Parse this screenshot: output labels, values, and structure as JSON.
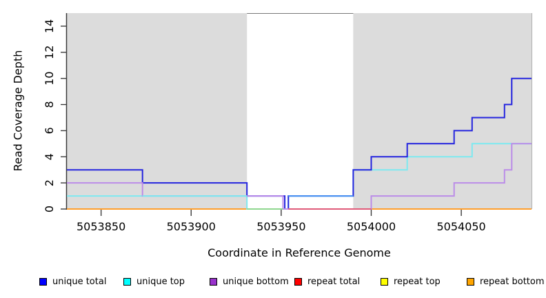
{
  "chart_data": {
    "type": "line",
    "subtype": "step",
    "title": "",
    "xlabel": "Coordinate in Reference Genome",
    "ylabel": "Read Coverage Depth",
    "xlim": [
      5053831,
      5054089
    ],
    "ylim": [
      0,
      15
    ],
    "xticks": [
      5053850,
      5053900,
      5053950,
      5054000,
      5054050
    ],
    "yticks": [
      0,
      2,
      4,
      6,
      8,
      10,
      12,
      14
    ],
    "grid": false,
    "legend_position": "bottom",
    "panel_border_color": "#787878",
    "axis_color": "#3a3a3a",
    "highlight_regions": [
      {
        "x1": 5053831,
        "x2": 5053931,
        "color": "#DCDCDC"
      },
      {
        "x1": 5053990,
        "x2": 5054089,
        "color": "#DCDCDC"
      }
    ],
    "series": [
      {
        "name": "unique total",
        "legend_color": "#0000FF",
        "line_color": "#2424DE",
        "steps": [
          [
            5053831,
            3
          ],
          [
            5053873,
            2
          ],
          [
            5053931,
            1
          ],
          [
            5053952,
            0
          ],
          [
            5053954,
            1
          ],
          [
            5053990,
            3
          ],
          [
            5054000,
            4
          ],
          [
            5054020,
            5
          ],
          [
            5054046,
            6
          ],
          [
            5054056,
            7
          ],
          [
            5054074,
            8
          ],
          [
            5054078,
            10
          ],
          [
            5054089,
            10
          ]
        ]
      },
      {
        "name": "unique top",
        "legend_color": "#00FFFF",
        "line_color": "#7DE9F0",
        "steps": [
          [
            5053831,
            1
          ],
          [
            5053931,
            0
          ],
          [
            5053954,
            1
          ],
          [
            5053990,
            3
          ],
          [
            5054020,
            4
          ],
          [
            5054056,
            5
          ],
          [
            5054089,
            5
          ]
        ]
      },
      {
        "name": "unique bottom",
        "legend_color": "#9932CC",
        "line_color": "#BB8CE8",
        "steps": [
          [
            5053831,
            2
          ],
          [
            5053873,
            1
          ],
          [
            5053951,
            0
          ],
          [
            5054000,
            1
          ],
          [
            5054046,
            2
          ],
          [
            5054074,
            3
          ],
          [
            5054078,
            5
          ],
          [
            5054089,
            5
          ]
        ]
      },
      {
        "name": "repeat total",
        "legend_color": "#FF0000",
        "line_color": "#E02020",
        "steps": [
          [
            5053831,
            0
          ],
          [
            5054089,
            0
          ]
        ]
      },
      {
        "name": "repeat top",
        "legend_color": "#FFFF00",
        "line_color": "#FFFF00",
        "steps": [
          [
            5053831,
            0
          ],
          [
            5054089,
            0
          ]
        ]
      },
      {
        "name": "repeat bottom",
        "legend_color": "#FFA500",
        "line_color": "#FF9E2C",
        "steps": [
          [
            5053831,
            0
          ],
          [
            5054089,
            0
          ]
        ]
      }
    ],
    "overlap_patches": [
      {
        "y": 1,
        "x1": 5053873,
        "x2": 5053931,
        "color": "#7DE9F0"
      },
      {
        "y": 1,
        "x1": 5053954,
        "x2": 5053990,
        "color": "#4D97F2"
      },
      {
        "y": 0,
        "x1": 5053931,
        "x2": 5053951,
        "color": "#8FD78F"
      },
      {
        "y": 0,
        "x1": 5053954,
        "x2": 5054000,
        "color": "#E05A78"
      }
    ]
  }
}
